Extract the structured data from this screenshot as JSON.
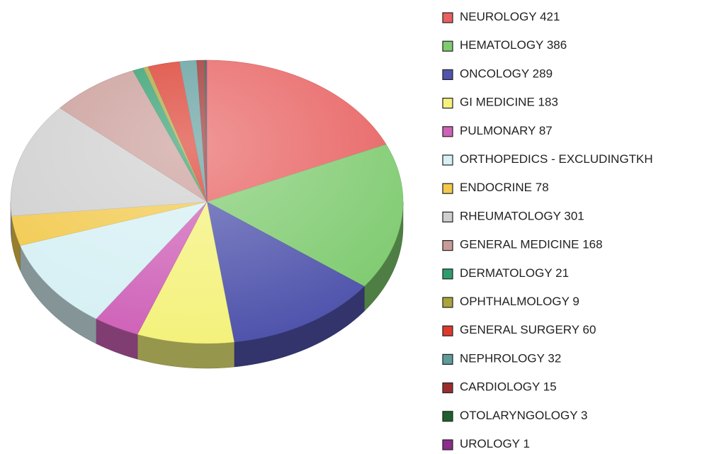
{
  "chart_data": {
    "type": "pie",
    "categories": [
      "NEUROLOGY",
      "HEMATOLOGY",
      "ONCOLOGY",
      "GI MEDICINE",
      "PULMONARY",
      "ORTHOPEDICS - EXCLUDINGTKH",
      "ENDOCRINE",
      "RHEUMATOLOGY",
      "GENERAL MEDICINE",
      "DERMATOLOGY",
      "OPHTHALMOLOGY",
      "GENERAL SURGERY",
      "NEPHROLOGY",
      "CARDIOLOGY",
      "OTOLARYNGOLOGY",
      "UROLOGY"
    ],
    "values": [
      421,
      386,
      289,
      183,
      87,
      240,
      78,
      301,
      168,
      21,
      9,
      60,
      32,
      15,
      3,
      1
    ],
    "value_labels": [
      "421",
      "386",
      "289",
      "183",
      "87",
      null,
      "78",
      "301",
      "168",
      "21",
      "9",
      "60",
      "32",
      "15",
      "3",
      "1"
    ],
    "colors": [
      "#e86060",
      "#7fcb70",
      "#5054ac",
      "#f4f27c",
      "#cf62b8",
      "#d6f0f4",
      "#f2c94c",
      "#cfcfcf",
      "#c99b97",
      "#2c9c6c",
      "#aaa43c",
      "#db3a2c",
      "#5e9c9c",
      "#9c2c2c",
      "#1f602c",
      "#8c2c8c"
    ],
    "legend": "right"
  }
}
